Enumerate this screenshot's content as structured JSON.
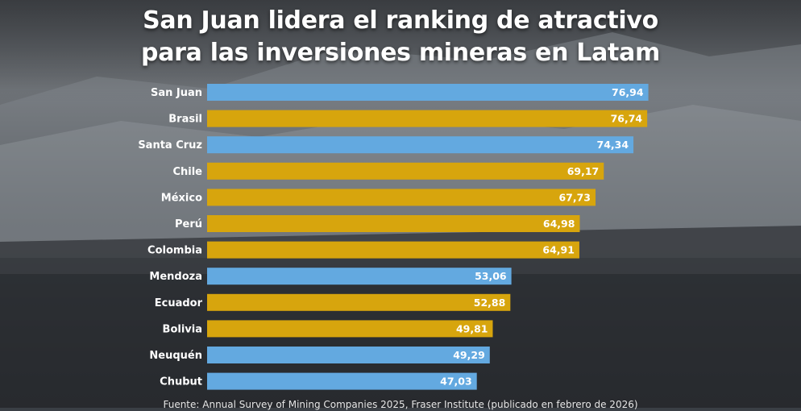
{
  "title_line1": "San Juan lidera el ranking de atractivo",
  "title_line2": "para las inversiones mineras en Latam",
  "source": "Fuente: Annual Survey of Mining Companies 2025, Fraser Institute (publicado en febrero de 2026)",
  "colors": {
    "blue": "#63a9e0",
    "gold": "#d7a50d"
  },
  "chart_data": {
    "type": "bar",
    "orientation": "horizontal",
    "title": "San Juan lidera el ranking de atractivo para las inversiones mineras en Latam",
    "xlim": [
      0,
      80
    ],
    "categories": [
      "San Juan",
      "Brasil",
      "Santa Cruz",
      "Chile",
      "México",
      "Perú",
      "Colombia",
      "Mendoza",
      "Ecuador",
      "Bolivia",
      "Neuquén",
      "Chubut"
    ],
    "values": [
      76.94,
      76.74,
      74.34,
      69.17,
      67.73,
      64.98,
      64.91,
      53.06,
      52.88,
      49.81,
      49.29,
      47.03
    ],
    "value_labels": [
      "76,94",
      "76,74",
      "74,34",
      "69,17",
      "67,73",
      "64,98",
      "64,91",
      "53,06",
      "52,88",
      "49,81",
      "49,29",
      "47,03"
    ],
    "bar_colors": [
      "blue",
      "gold",
      "blue",
      "gold",
      "gold",
      "gold",
      "gold",
      "blue",
      "gold",
      "gold",
      "blue",
      "blue"
    ]
  }
}
